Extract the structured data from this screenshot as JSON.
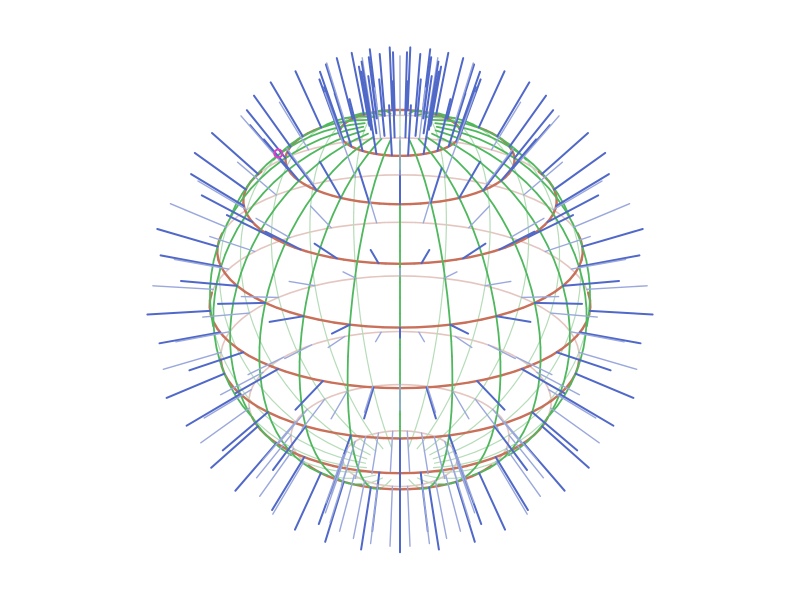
{
  "scene": {
    "object": "sphere-wireframe",
    "background_color": "#ffffff",
    "latitude_line_color": "#c8705a",
    "latitude_back_color": "#e4c6c0",
    "longitude_line_color": "#4fb85e",
    "longitude_back_color": "#b6dcb8",
    "normal_vector_color": "#5068c8",
    "normal_vector_back_color": "#9aa8dc",
    "marker_color": "#e040c0",
    "latitude_count": 9,
    "longitude_count": 24,
    "normals_per_ring": 24
  }
}
